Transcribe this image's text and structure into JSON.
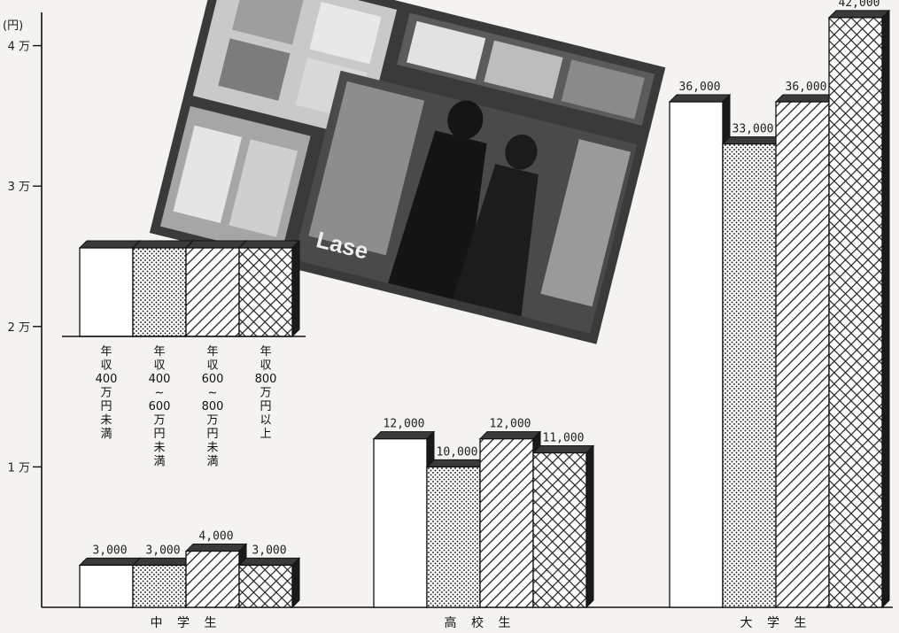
{
  "chart_data": {
    "type": "bar",
    "unit_label": "(円)",
    "y_ticks": [
      {
        "value": 10000,
        "label": "1 万"
      },
      {
        "value": 20000,
        "label": "2 万"
      },
      {
        "value": 30000,
        "label": "3 万"
      },
      {
        "value": 40000,
        "label": "4 万"
      }
    ],
    "ylim": [
      0,
      43000
    ],
    "categories": [
      "中 学 生",
      "高 校 生",
      "大 学 生"
    ],
    "series": [
      {
        "name": "年収400万円未満",
        "legend_lines": [
          "年",
          "収",
          "400",
          "万",
          "円",
          "未",
          "満"
        ],
        "pattern": "white",
        "values": [
          3000,
          12000,
          36000
        ],
        "value_labels": [
          "3,000",
          "12,000",
          "36,000"
        ]
      },
      {
        "name": "年収400~600万円未満",
        "legend_lines": [
          "年",
          "収",
          "400",
          "~",
          "600",
          "万",
          "円",
          "未",
          "満"
        ],
        "pattern": "dots",
        "values": [
          3000,
          10000,
          33000
        ],
        "value_labels": [
          "3,000",
          "10,000",
          "33,000"
        ]
      },
      {
        "name": "年収600~800万円未満",
        "legend_lines": [
          "年",
          "収",
          "600",
          "~",
          "800",
          "万",
          "円",
          "未",
          "満"
        ],
        "pattern": "diag",
        "values": [
          4000,
          12000,
          36000
        ],
        "value_labels": [
          "4,000",
          "12,000",
          "36,000"
        ]
      },
      {
        "name": "年収800万円以上",
        "legend_lines": [
          "年",
          "収",
          "800",
          "万",
          "円",
          "以",
          "上"
        ],
        "pattern": "cross",
        "values": [
          3000,
          11000,
          42000
        ],
        "value_labels": [
          "3,000",
          "11,000",
          "42,000"
        ]
      }
    ],
    "legend_position": "upper-left",
    "grid": false
  },
  "photo": {
    "sign_text": "Lase"
  }
}
